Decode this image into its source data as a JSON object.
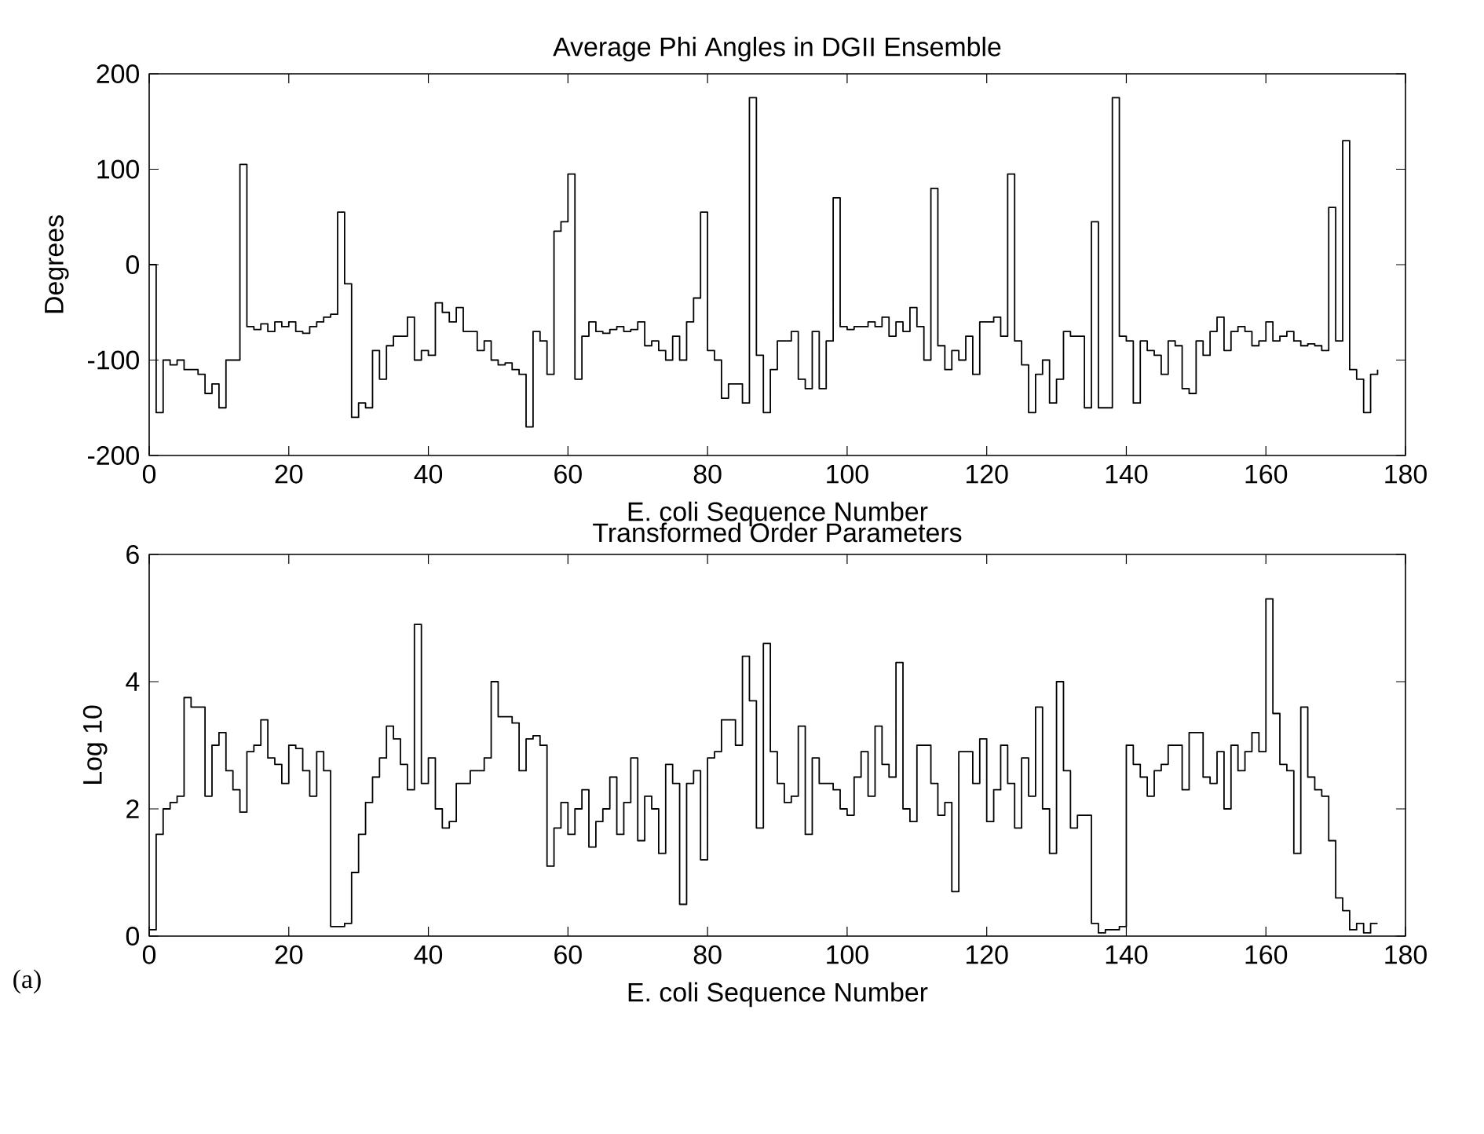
{
  "chart_data": [
    {
      "type": "step",
      "title": "Average Phi Angles in DGII Ensemble",
      "xlabel": "E. coli Sequence Number",
      "ylabel": "Degrees",
      "xlim": [
        0,
        180
      ],
      "ylim": [
        -200,
        200
      ],
      "xticks": [
        0,
        20,
        40,
        60,
        80,
        100,
        120,
        140,
        160,
        180
      ],
      "yticks": [
        -200,
        -100,
        0,
        100,
        200
      ],
      "color": "#000000",
      "x": [
        0,
        1,
        2,
        3,
        4,
        5,
        6,
        7,
        8,
        9,
        10,
        11,
        12,
        13,
        14,
        15,
        16,
        17,
        18,
        19,
        20,
        21,
        22,
        23,
        24,
        25,
        26,
        27,
        28,
        29,
        30,
        31,
        32,
        33,
        34,
        35,
        36,
        37,
        38,
        39,
        40,
        41,
        42,
        43,
        44,
        45,
        46,
        47,
        48,
        49,
        50,
        51,
        52,
        53,
        54,
        55,
        56,
        57,
        58,
        59,
        60,
        61,
        62,
        63,
        64,
        65,
        66,
        67,
        68,
        69,
        70,
        71,
        72,
        73,
        74,
        75,
        76,
        77,
        78,
        79,
        80,
        81,
        82,
        83,
        84,
        85,
        86,
        87,
        88,
        89,
        90,
        91,
        92,
        93,
        94,
        95,
        96,
        97,
        98,
        99,
        100,
        101,
        102,
        103,
        104,
        105,
        106,
        107,
        108,
        109,
        110,
        111,
        112,
        113,
        114,
        115,
        116,
        117,
        118,
        119,
        120,
        121,
        122,
        123,
        124,
        125,
        126,
        127,
        128,
        129,
        130,
        131,
        132,
        133,
        134,
        135,
        136,
        137,
        138,
        139,
        140,
        141,
        142,
        143,
        144,
        145,
        146,
        147,
        148,
        149,
        150,
        151,
        152,
        153,
        154,
        155,
        156,
        157,
        158,
        159,
        160,
        161,
        162,
        163,
        164,
        165,
        166,
        167,
        168,
        169,
        170,
        171,
        172,
        173,
        174,
        175,
        176
      ],
      "values": [
        0,
        -155,
        -100,
        -105,
        -100,
        -110,
        -110,
        -115,
        -135,
        -125,
        -150,
        -100,
        -100,
        105,
        -65,
        -68,
        -62,
        -70,
        -60,
        -65,
        -60,
        -70,
        -72,
        -65,
        -60,
        -55,
        -52,
        55,
        -20,
        -160,
        -145,
        -150,
        -90,
        -120,
        -85,
        -75,
        -75,
        -55,
        -100,
        -90,
        -95,
        -40,
        -50,
        -60,
        -45,
        -70,
        -70,
        -90,
        -80,
        -100,
        -105,
        -103,
        -110,
        -115,
        -170,
        -70,
        -80,
        -115,
        35,
        45,
        95,
        -120,
        -75,
        -60,
        -70,
        -72,
        -68,
        -65,
        -70,
        -68,
        -60,
        -85,
        -80,
        -90,
        -100,
        -75,
        -100,
        -60,
        -35,
        55,
        -90,
        -100,
        -140,
        -125,
        -125,
        -145,
        175,
        -95,
        -155,
        -110,
        -80,
        -80,
        -70,
        -120,
        -130,
        -70,
        -130,
        -80,
        70,
        -65,
        -68,
        -65,
        -65,
        -60,
        -65,
        -55,
        -75,
        -60,
        -70,
        -45,
        -65,
        -100,
        80,
        -85,
        -110,
        -90,
        -100,
        -75,
        -115,
        -60,
        -60,
        -55,
        -75,
        95,
        -80,
        -105,
        -155,
        -115,
        -100,
        -145,
        -120,
        -70,
        -75,
        -75,
        -150,
        45,
        -150,
        -150,
        175,
        -75,
        -80,
        -145,
        -80,
        -90,
        -95,
        -115,
        -80,
        -85,
        -130,
        -135,
        -80,
        -95,
        -70,
        -55,
        -90,
        -70,
        -65,
        -70,
        -85,
        -80,
        -60,
        -80,
        -75,
        -70,
        -80,
        -85,
        -83,
        -85,
        -90,
        60,
        -80,
        130,
        -110,
        -120,
        -155,
        -115,
        -110
      ]
    },
    {
      "type": "step",
      "title": "Transformed Order Parameters",
      "xlabel": "E. coli Sequence Number",
      "ylabel": "Log 10",
      "xlim": [
        0,
        180
      ],
      "ylim": [
        0,
        6
      ],
      "xticks": [
        0,
        20,
        40,
        60,
        80,
        100,
        120,
        140,
        160,
        180
      ],
      "yticks": [
        0,
        2,
        4,
        6
      ],
      "color": "#000000",
      "annotations": [
        "(a)"
      ],
      "x": [
        0,
        1,
        2,
        3,
        4,
        5,
        6,
        7,
        8,
        9,
        10,
        11,
        12,
        13,
        14,
        15,
        16,
        17,
        18,
        19,
        20,
        21,
        22,
        23,
        24,
        25,
        26,
        27,
        28,
        29,
        30,
        31,
        32,
        33,
        34,
        35,
        36,
        37,
        38,
        39,
        40,
        41,
        42,
        43,
        44,
        45,
        46,
        47,
        48,
        49,
        50,
        51,
        52,
        53,
        54,
        55,
        56,
        57,
        58,
        59,
        60,
        61,
        62,
        63,
        64,
        65,
        66,
        67,
        68,
        69,
        70,
        71,
        72,
        73,
        74,
        75,
        76,
        77,
        78,
        79,
        80,
        81,
        82,
        83,
        84,
        85,
        86,
        87,
        88,
        89,
        90,
        91,
        92,
        93,
        94,
        95,
        96,
        97,
        98,
        99,
        100,
        101,
        102,
        103,
        104,
        105,
        106,
        107,
        108,
        109,
        110,
        111,
        112,
        113,
        114,
        115,
        116,
        117,
        118,
        119,
        120,
        121,
        122,
        123,
        124,
        125,
        126,
        127,
        128,
        129,
        130,
        131,
        132,
        133,
        134,
        135,
        136,
        137,
        138,
        139,
        140,
        141,
        142,
        143,
        144,
        145,
        146,
        147,
        148,
        149,
        150,
        151,
        152,
        153,
        154,
        155,
        156,
        157,
        158,
        159,
        160,
        161,
        162,
        163,
        164,
        165,
        166,
        167,
        168,
        169,
        170,
        171,
        172,
        173,
        174,
        175,
        176
      ],
      "values": [
        0.1,
        1.6,
        2.0,
        2.1,
        2.2,
        3.75,
        3.6,
        3.6,
        2.2,
        3.0,
        3.2,
        2.6,
        2.3,
        1.95,
        2.9,
        3.0,
        3.4,
        2.8,
        2.7,
        2.4,
        3.0,
        2.95,
        2.6,
        2.2,
        2.9,
        2.6,
        0.15,
        0.15,
        0.2,
        1.0,
        1.6,
        2.1,
        2.5,
        2.8,
        3.3,
        3.1,
        2.7,
        2.3,
        4.9,
        2.4,
        2.8,
        2.0,
        1.7,
        1.8,
        2.4,
        2.4,
        2.6,
        2.6,
        2.8,
        4.0,
        3.45,
        3.45,
        3.35,
        2.6,
        3.1,
        3.15,
        3.0,
        1.1,
        1.7,
        2.1,
        1.6,
        2.0,
        2.3,
        1.4,
        1.8,
        2.0,
        2.5,
        1.6,
        2.1,
        2.8,
        1.5,
        2.2,
        2.0,
        1.3,
        2.7,
        2.4,
        0.5,
        2.4,
        2.6,
        1.2,
        2.8,
        2.9,
        3.4,
        3.4,
        3.0,
        4.4,
        3.7,
        1.7,
        4.6,
        2.9,
        2.4,
        2.1,
        2.2,
        3.3,
        1.6,
        2.8,
        2.4,
        2.4,
        2.3,
        2.0,
        1.9,
        2.5,
        2.9,
        2.2,
        3.3,
        2.7,
        2.5,
        4.3,
        2.0,
        1.8,
        3.0,
        3.0,
        2.4,
        1.9,
        2.1,
        0.7,
        2.9,
        2.9,
        2.4,
        3.1,
        1.8,
        2.3,
        3.0,
        2.4,
        1.7,
        2.8,
        2.2,
        3.6,
        2.0,
        1.3,
        4.0,
        2.6,
        1.7,
        1.9,
        1.9,
        0.2,
        0.05,
        0.1,
        0.1,
        0.15,
        3.0,
        2.7,
        2.5,
        2.2,
        2.6,
        2.7,
        3.0,
        3.0,
        2.3,
        3.2,
        3.2,
        2.5,
        2.4,
        2.9,
        2.0,
        3.0,
        2.6,
        2.9,
        3.2,
        2.9,
        5.3,
        3.5,
        2.7,
        2.6,
        1.3,
        3.6,
        2.5,
        2.3,
        2.2,
        1.5,
        0.6,
        0.4,
        0.1,
        0.2,
        0.05,
        0.2,
        0.2
      ]
    }
  ]
}
